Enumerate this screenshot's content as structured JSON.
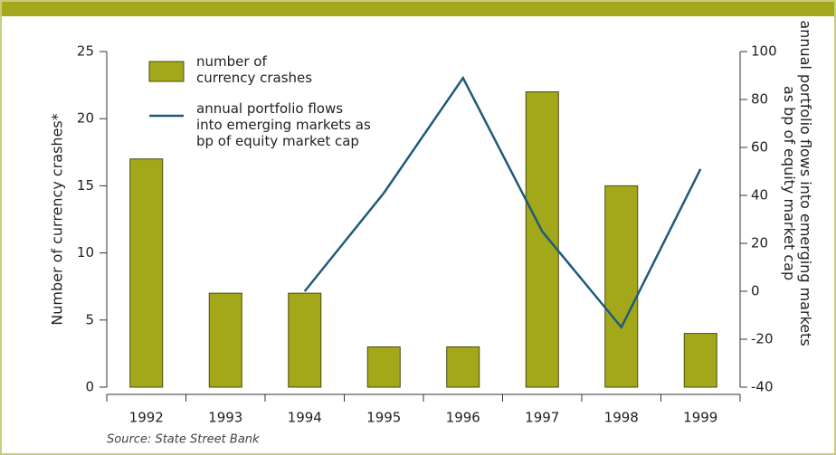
{
  "chart_data": {
    "type": "bar_line",
    "categories": [
      "1992",
      "1993",
      "1994",
      "1995",
      "1996",
      "1997",
      "1998",
      "1999"
    ],
    "series": [
      {
        "name": "number of currency crashes",
        "type": "bar",
        "color": "#a3a81a",
        "values": [
          17,
          7,
          7,
          3,
          3,
          22,
          15,
          4
        ]
      },
      {
        "name": "annual portfolio flows into emerging markets as bp of equity market cap",
        "type": "line",
        "axis": "y2",
        "color": "#1f5a7a",
        "values": [
          null,
          null,
          0,
          41,
          89,
          25,
          -15,
          51
        ]
      }
    ],
    "ylabel": "Number of currency crashes*",
    "y2label": "annual portfolio flows into emerging markets as bp of equity market cap",
    "ylim": [
      0,
      25
    ],
    "yticks": [
      0,
      5,
      10,
      15,
      20,
      25
    ],
    "y2lim": [
      -40,
      100
    ],
    "y2ticks": [
      -40,
      -20,
      0,
      20,
      40,
      60,
      80,
      100
    ],
    "source": "Source: State Street Bank",
    "legend": "upper left"
  }
}
